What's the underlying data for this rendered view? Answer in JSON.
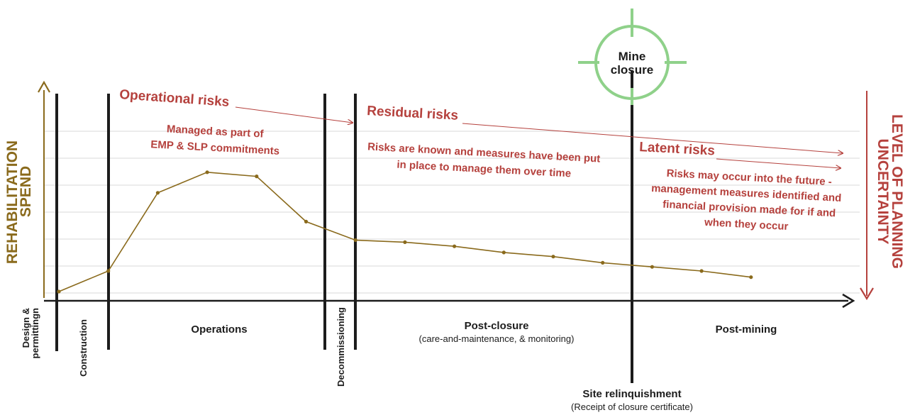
{
  "y_axis_label_line1": "REHABILITATION",
  "y_axis_label_line2": "SPEND",
  "right_axis_label_line1": "LEVEL OF PLANNING",
  "right_axis_label_line2": "UNCERTAINTY",
  "target_label_line1": "Mine",
  "target_label_line2": "closure",
  "risks": {
    "operational_title": "Operational risks",
    "operational_desc_line1": "Managed as part of",
    "operational_desc_line2": "EMP & SLP commitments",
    "residual_title": "Residual risks",
    "residual_desc_line1": "Risks are known and measures have been put",
    "residual_desc_line2": "in place to manage them over time",
    "latent_title": "Latent risks",
    "latent_desc_line1": "Risks may occur into the future -",
    "latent_desc_line2": "management  measures identified and",
    "latent_desc_line3": "financial provision made for if and",
    "latent_desc_line4": "when they occur"
  },
  "phases": {
    "design_line1": "Design &",
    "design_line2": "permittingn",
    "construction": "Construction",
    "operations": "Operations",
    "decommissioning": "Decommissioning",
    "post_closure": "Post-closure",
    "post_closure_sub": "(care-and-maintenance, & monitoring)",
    "post_mining": "Post-mining"
  },
  "site_relinquishment": "Site relinquishment",
  "site_relinquishment_sub": "(Receipt of closure certificate)",
  "colors": {
    "risk_text": "#b5413d",
    "spend_line": "#8a6a1c",
    "target": "#8fd18a",
    "axis": "#1c1c1c",
    "grid": "#d9d9d9"
  },
  "spend_curve": [
    {
      "t": 0,
      "spend": 0.0
    },
    {
      "t": 1,
      "spend": 0.5
    },
    {
      "t": 2,
      "spend": 2.4
    },
    {
      "t": 3,
      "spend": 2.9
    },
    {
      "t": 4,
      "spend": 2.8
    },
    {
      "t": 5,
      "spend": 1.7
    },
    {
      "t": 6,
      "spend": 1.25
    },
    {
      "t": 7,
      "spend": 1.2
    },
    {
      "t": 8,
      "spend": 1.1
    },
    {
      "t": 9,
      "spend": 0.95
    },
    {
      "t": 10,
      "spend": 0.85
    },
    {
      "t": 11,
      "spend": 0.7
    },
    {
      "t": 12,
      "spend": 0.6
    },
    {
      "t": 13,
      "spend": 0.5
    },
    {
      "t": 14,
      "spend": 0.35
    }
  ]
}
